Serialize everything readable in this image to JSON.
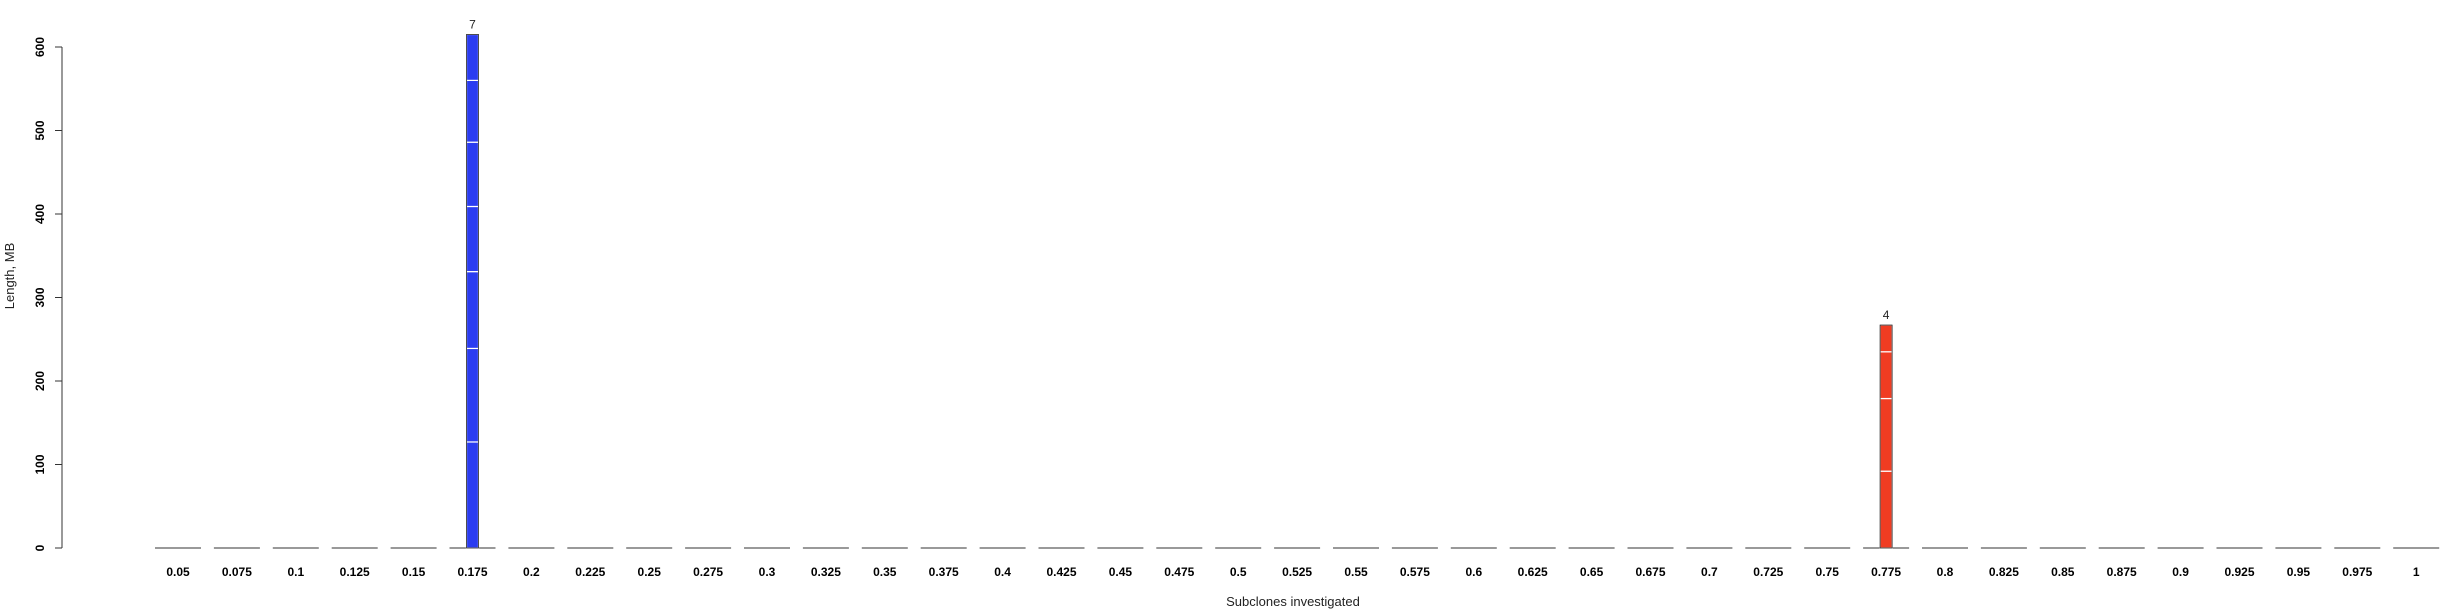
{
  "chart_data": {
    "type": "bar",
    "stacked": true,
    "xlabel": "Subclones investigated",
    "ylabel": "Length, MB",
    "ylim": [
      0,
      600
    ],
    "yticks": [
      0,
      100,
      200,
      300,
      400,
      500,
      600
    ],
    "categories": [
      "0.05",
      "0.075",
      "0.1",
      "0.125",
      "0.15",
      "0.175",
      "0.2",
      "0.225",
      "0.25",
      "0.275",
      "0.3",
      "0.325",
      "0.35",
      "0.375",
      "0.4",
      "0.425",
      "0.45",
      "0.475",
      "0.5",
      "0.525",
      "0.55",
      "0.575",
      "0.6",
      "0.625",
      "0.65",
      "0.675",
      "0.7",
      "0.725",
      "0.75",
      "0.775",
      "0.8",
      "0.825",
      "0.85",
      "0.875",
      "0.9",
      "0.925",
      "0.95",
      "0.975",
      "1"
    ],
    "bars": [
      {
        "category": "0.175",
        "color": "#2b3cf0",
        "count_label": "7",
        "segments": [
          127,
          112,
          92,
          78,
          77,
          74,
          55
        ]
      },
      {
        "category": "0.775",
        "color": "#f03c22",
        "count_label": "4",
        "segments": [
          92,
          87,
          56,
          32
        ]
      }
    ],
    "grid": false,
    "legend": "none"
  }
}
